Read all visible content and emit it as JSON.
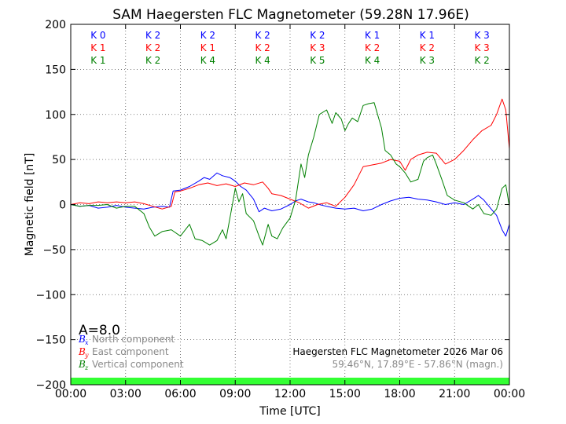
{
  "chart_data": {
    "type": "line",
    "title": "SAM Haegersten FLC Magnetometer (59.28N 17.96E)",
    "xlabel": "Time [UTC]",
    "ylabel": "Magnetic field [nT]",
    "xlim": [
      0,
      24
    ],
    "ylim": [
      -200,
      200
    ],
    "x_ticks": [
      0,
      3,
      6,
      9,
      12,
      15,
      18,
      21,
      24
    ],
    "x_tick_labels": [
      "00:00",
      "03:00",
      "06:00",
      "09:00",
      "12:00",
      "15:00",
      "18:00",
      "21:00",
      "00:00"
    ],
    "y_ticks": [
      200,
      150,
      100,
      50,
      0,
      -50,
      -100,
      -150,
      -200
    ],
    "y_tick_labels": [
      "200",
      "150",
      "100",
      "50",
      "0",
      "−50",
      "−100",
      "−150",
      "−200"
    ],
    "grid": true,
    "k_indices": {
      "x_centers": [
        1.5,
        4.5,
        7.5,
        10.5,
        13.5,
        16.5,
        19.5,
        22.5
      ],
      "rows": [
        {
          "color": "#0000ff",
          "labels": [
            "K 0",
            "K 2",
            "K 2",
            "K 2",
            "K 2",
            "K 1",
            "K 1",
            "K 3"
          ]
        },
        {
          "color": "#ff0000",
          "labels": [
            "K 1",
            "K 2",
            "K 1",
            "K 2",
            "K 3",
            "K 2",
            "K 2",
            "K 3"
          ]
        },
        {
          "color": "#008000",
          "labels": [
            "K 1",
            "K 2",
            "K 4",
            "K 4",
            "K 5",
            "K 4",
            "K 3",
            "K 2"
          ]
        }
      ]
    },
    "activity_index": "A=8.0",
    "legend": [
      {
        "symbol": "B",
        "sub": "x",
        "name": "North component",
        "color": "#0000ff"
      },
      {
        "symbol": "B",
        "sub": "y",
        "name": "East component",
        "color": "#ff0000"
      },
      {
        "symbol": "B",
        "sub": "z",
        "name": "Vertical component",
        "color": "#008000"
      }
    ],
    "info_line_1": "Haegersten FLC Magnetometer 2026 Mar 06",
    "info_line_2": "59.46°N, 17.89°E - 57.86°N (magn.)",
    "status_bar_color": "#33ff33",
    "series": [
      {
        "name": "Bx North component",
        "color": "#0000ff",
        "points": [
          [
            0,
            0
          ],
          [
            0.5,
            -2
          ],
          [
            1,
            -1
          ],
          [
            1.5,
            -4
          ],
          [
            2,
            -3
          ],
          [
            2.5,
            -1
          ],
          [
            3,
            -3
          ],
          [
            3.5,
            -4
          ],
          [
            4,
            -5
          ],
          [
            4.5,
            -3
          ],
          [
            5,
            -2
          ],
          [
            5.4,
            -3
          ],
          [
            5.6,
            15
          ],
          [
            6,
            16
          ],
          [
            6.5,
            20
          ],
          [
            7,
            26
          ],
          [
            7.3,
            30
          ],
          [
            7.6,
            28
          ],
          [
            8,
            35
          ],
          [
            8.3,
            32
          ],
          [
            8.7,
            30
          ],
          [
            9,
            26
          ],
          [
            9.3,
            20
          ],
          [
            9.6,
            16
          ],
          [
            10,
            6
          ],
          [
            10.3,
            -8
          ],
          [
            10.6,
            -4
          ],
          [
            11,
            -7
          ],
          [
            11.5,
            -5
          ],
          [
            12,
            0
          ],
          [
            12.3,
            4
          ],
          [
            12.6,
            6
          ],
          [
            13,
            3
          ],
          [
            13.3,
            2
          ],
          [
            13.6,
            0
          ],
          [
            14,
            -2
          ],
          [
            14.5,
            -4
          ],
          [
            15,
            -5
          ],
          [
            15.5,
            -4
          ],
          [
            16,
            -7
          ],
          [
            16.5,
            -5
          ],
          [
            17,
            0
          ],
          [
            17.5,
            4
          ],
          [
            18,
            7
          ],
          [
            18.5,
            8
          ],
          [
            19,
            6
          ],
          [
            19.5,
            5
          ],
          [
            20,
            3
          ],
          [
            20.5,
            0
          ],
          [
            21,
            2
          ],
          [
            21.5,
            0
          ],
          [
            22,
            6
          ],
          [
            22.3,
            10
          ],
          [
            22.6,
            5
          ],
          [
            23,
            -5
          ],
          [
            23.3,
            -12
          ],
          [
            23.6,
            -28
          ],
          [
            23.8,
            -35
          ],
          [
            24,
            -22
          ]
        ]
      },
      {
        "name": "By East component",
        "color": "#ff0000",
        "points": [
          [
            0,
            0
          ],
          [
            0.5,
            2
          ],
          [
            1,
            1
          ],
          [
            1.5,
            3
          ],
          [
            2,
            2
          ],
          [
            2.5,
            3
          ],
          [
            3,
            2
          ],
          [
            3.5,
            3
          ],
          [
            4,
            1
          ],
          [
            4.5,
            -2
          ],
          [
            5,
            -5
          ],
          [
            5.5,
            -2
          ],
          [
            5.7,
            14
          ],
          [
            6,
            15
          ],
          [
            6.5,
            18
          ],
          [
            7,
            22
          ],
          [
            7.5,
            24
          ],
          [
            8,
            21
          ],
          [
            8.5,
            23
          ],
          [
            9,
            20
          ],
          [
            9.5,
            24
          ],
          [
            10,
            22
          ],
          [
            10.5,
            25
          ],
          [
            10.8,
            18
          ],
          [
            11,
            12
          ],
          [
            11.5,
            10
          ],
          [
            12,
            6
          ],
          [
            12.5,
            2
          ],
          [
            13,
            -4
          ],
          [
            13.5,
            0
          ],
          [
            14,
            2
          ],
          [
            14.5,
            -2
          ],
          [
            15,
            8
          ],
          [
            15.5,
            22
          ],
          [
            16,
            42
          ],
          [
            16.5,
            44
          ],
          [
            17,
            46
          ],
          [
            17.5,
            50
          ],
          [
            18,
            48
          ],
          [
            18.3,
            38
          ],
          [
            18.6,
            50
          ],
          [
            19,
            55
          ],
          [
            19.5,
            58
          ],
          [
            20,
            57
          ],
          [
            20.5,
            45
          ],
          [
            21,
            50
          ],
          [
            21.5,
            60
          ],
          [
            22,
            72
          ],
          [
            22.5,
            82
          ],
          [
            23,
            88
          ],
          [
            23.3,
            100
          ],
          [
            23.6,
            117
          ],
          [
            23.8,
            105
          ],
          [
            24,
            62
          ]
        ]
      },
      {
        "name": "Bz Vertical component",
        "color": "#008000",
        "points": [
          [
            0,
            0
          ],
          [
            0.5,
            -2
          ],
          [
            1,
            -1
          ],
          [
            1.5,
            -1
          ],
          [
            2,
            0
          ],
          [
            2.5,
            -4
          ],
          [
            3,
            -2
          ],
          [
            3.5,
            -2
          ],
          [
            4,
            -10
          ],
          [
            4.3,
            -25
          ],
          [
            4.6,
            -35
          ],
          [
            5,
            -30
          ],
          [
            5.5,
            -28
          ],
          [
            6,
            -35
          ],
          [
            6.5,
            -22
          ],
          [
            6.8,
            -38
          ],
          [
            7.2,
            -40
          ],
          [
            7.6,
            -45
          ],
          [
            8,
            -40
          ],
          [
            8.3,
            -28
          ],
          [
            8.5,
            -38
          ],
          [
            8.8,
            -5
          ],
          [
            9,
            18
          ],
          [
            9.2,
            3
          ],
          [
            9.4,
            12
          ],
          [
            9.6,
            -10
          ],
          [
            10,
            -18
          ],
          [
            10.3,
            -35
          ],
          [
            10.5,
            -45
          ],
          [
            10.8,
            -22
          ],
          [
            11,
            -35
          ],
          [
            11.3,
            -38
          ],
          [
            11.6,
            -26
          ],
          [
            12,
            -15
          ],
          [
            12.3,
            5
          ],
          [
            12.6,
            45
          ],
          [
            12.8,
            30
          ],
          [
            13,
            55
          ],
          [
            13.3,
            75
          ],
          [
            13.6,
            100
          ],
          [
            14,
            105
          ],
          [
            14.3,
            90
          ],
          [
            14.5,
            102
          ],
          [
            14.8,
            95
          ],
          [
            15,
            82
          ],
          [
            15.2,
            90
          ],
          [
            15.4,
            96
          ],
          [
            15.7,
            92
          ],
          [
            16,
            110
          ],
          [
            16.3,
            112
          ],
          [
            16.6,
            113
          ],
          [
            17,
            85
          ],
          [
            17.2,
            60
          ],
          [
            17.5,
            55
          ],
          [
            17.8,
            45
          ],
          [
            18,
            42
          ],
          [
            18.3,
            35
          ],
          [
            18.6,
            25
          ],
          [
            19,
            28
          ],
          [
            19.3,
            48
          ],
          [
            19.5,
            52
          ],
          [
            19.8,
            55
          ],
          [
            20,
            45
          ],
          [
            20.3,
            28
          ],
          [
            20.6,
            10
          ],
          [
            21,
            5
          ],
          [
            21.5,
            2
          ],
          [
            22,
            -5
          ],
          [
            22.3,
            0
          ],
          [
            22.6,
            -10
          ],
          [
            23,
            -12
          ],
          [
            23.3,
            -5
          ],
          [
            23.6,
            18
          ],
          [
            23.8,
            22
          ],
          [
            24,
            -2
          ]
        ]
      }
    ]
  }
}
